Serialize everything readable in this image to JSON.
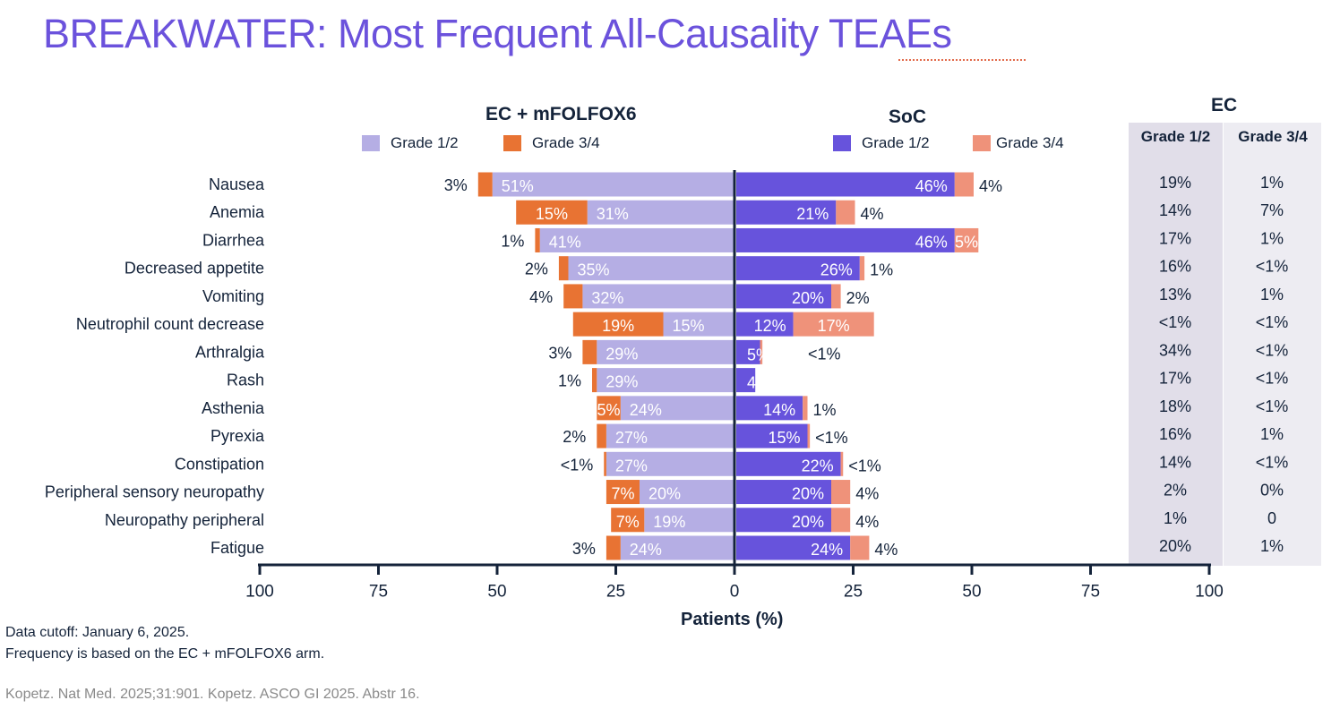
{
  "title": "BREAKWATER: Most Frequent All-Causality TEAEs",
  "footnotes": [
    "Data cutoff: January 6, 2025.",
    "Frequency is based on the EC + mFOLFOX6 arm."
  ],
  "reference": "Kopetz. Nat Med. 2025;31:901. Kopetz. ASCO GI 2025. Abstr 16.",
  "chart_data": {
    "type": "bar",
    "orientation": "horizontal-diverging-stacked",
    "xlabel": "Patients (%)",
    "xlim": [
      -100,
      100
    ],
    "xticks": [
      "100",
      "75",
      "50",
      "25",
      "0",
      "25",
      "50",
      "75",
      "100"
    ],
    "categories": [
      "Nausea",
      "Anemia",
      "Diarrhea",
      "Decreased appetite",
      "Vomiting",
      "Neutrophil count decrease",
      "Arthralgia",
      "Rash",
      "Asthenia",
      "Pyrexia",
      "Constipation",
      "Peripheral sensory neuropathy",
      "Neuropathy peripheral",
      "Fatigue"
    ],
    "groups": [
      {
        "name": "EC + mFOLFOX6",
        "side": "left",
        "series": [
          {
            "name": "Grade 1/2",
            "color": "#b5aee4",
            "values": [
              51,
              31,
              41,
              35,
              32,
              15,
              29,
              29,
              24,
              27,
              27,
              20,
              19,
              24
            ],
            "labels": [
              "51%",
              "31%",
              "41%",
              "35%",
              "32%",
              "15%",
              "29%",
              "29%",
              "24%",
              "27%",
              "27%",
              "20%",
              "19%",
              "24%"
            ]
          },
          {
            "name": "Grade 3/4",
            "color": "#e87333",
            "values": [
              3,
              15,
              1,
              2,
              4,
              19,
              3,
              1,
              5,
              2,
              0.5,
              7,
              7,
              3
            ],
            "labels": [
              "3%",
              "15%",
              "1%",
              "2%",
              "4%",
              "19%",
              "3%",
              "1%",
              "5%",
              "2%",
              "<1%",
              "7%",
              "7%",
              "3%"
            ]
          }
        ]
      },
      {
        "name": "SoC",
        "side": "right",
        "series": [
          {
            "name": "Grade 1/2",
            "color": "#6753dc",
            "values": [
              46,
              21,
              46,
              26,
              20,
              12,
              5,
              4,
              14,
              15,
              22,
              20,
              20,
              24
            ],
            "labels": [
              "46%",
              "21%",
              "46%",
              "26%",
              "20%",
              "12%",
              "5%",
              "4%",
              "14%",
              "15%",
              "22%",
              "20%",
              "20%",
              "24%"
            ]
          },
          {
            "name": "Grade 3/4",
            "color": "#ef927a",
            "values": [
              4,
              4,
              5,
              1,
              2,
              17,
              0.5,
              0,
              1,
              0.5,
              0.5,
              4,
              4,
              4
            ],
            "labels": [
              "4%",
              "4%",
              "5%",
              "1%",
              "2%",
              "17%",
              "<1%",
              "",
              "1%",
              "<1%",
              "<1%",
              "4%",
              "4%",
              "4%"
            ]
          }
        ]
      }
    ],
    "legend": "top"
  },
  "table": {
    "title": "EC",
    "columns": [
      "Grade 1/2",
      "Grade 3/4"
    ],
    "grade12": [
      "19%",
      "14%",
      "17%",
      "16%",
      "13%",
      "<1%",
      "34%",
      "17%",
      "18%",
      "16%",
      "14%",
      "2%",
      "1%",
      "20%"
    ],
    "grade34": [
      "1%",
      "7%",
      "1%",
      "<1%",
      "1%",
      "<1%",
      "<1%",
      "<1%",
      "<1%",
      "1%",
      "<1%",
      "0%",
      "0",
      "1%"
    ]
  }
}
